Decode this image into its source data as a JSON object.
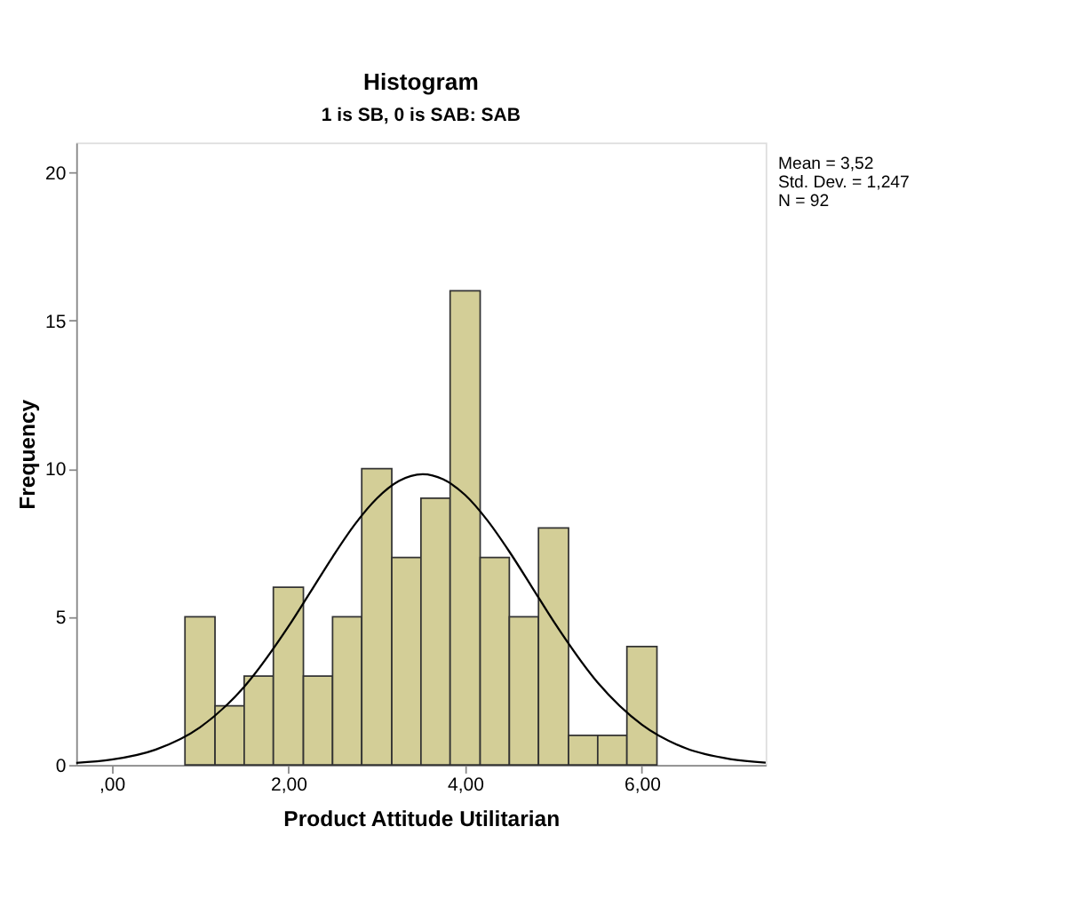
{
  "chart_data": {
    "type": "histogram",
    "title": "Histogram",
    "subtitle": "1 is SB, 0 is SAB: SAB",
    "xlabel": "Product Attitude Utilitarian",
    "ylabel": "Frequency",
    "bins": [
      0.83,
      1.17,
      1.5,
      1.83,
      2.17,
      2.5,
      2.83,
      3.17,
      3.5,
      3.83,
      4.17,
      4.5,
      4.83,
      5.17,
      5.5,
      5.83,
      6.17
    ],
    "values": [
      5,
      2,
      3,
      6,
      3,
      5,
      10,
      7,
      9,
      16,
      7,
      5,
      8,
      1,
      1,
      4
    ],
    "color": "#d3ce97",
    "series": [
      {
        "type": "line",
        "color": "#000000",
        "x": [
          -0.4,
          0,
          0.5,
          1.0,
          1.5,
          2.0,
          2.25,
          2.5,
          2.75,
          3.0,
          3.25,
          3.52,
          3.75,
          4.0,
          4.25,
          4.5,
          4.75,
          5.0,
          5.5,
          6.0,
          6.5,
          7.0,
          7.4
        ],
        "values": [
          0.07,
          0.18,
          0.52,
          1.27,
          2.64,
          4.67,
          5.84,
          7.02,
          8.11,
          8.99,
          9.58,
          9.81,
          9.64,
          9.11,
          8.26,
          7.2,
          6.03,
          4.85,
          2.78,
          1.36,
          0.56,
          0.2,
          0.08
        ]
      }
    ],
    "xlim": [
      -0.4,
      7.4
    ],
    "xticks": [
      {
        "value": 0,
        "label": ",00"
      },
      {
        "value": 2,
        "label": "2,00"
      },
      {
        "value": 4,
        "label": "4,00"
      },
      {
        "value": 6,
        "label": "6,00"
      }
    ],
    "ylim": [
      0,
      21
    ],
    "yticks": [
      0,
      5,
      10,
      15,
      20
    ],
    "grid": false,
    "annotations": [
      "Mean = 3,52",
      "Std. Dev. = 1,247",
      "N = 92"
    ]
  }
}
